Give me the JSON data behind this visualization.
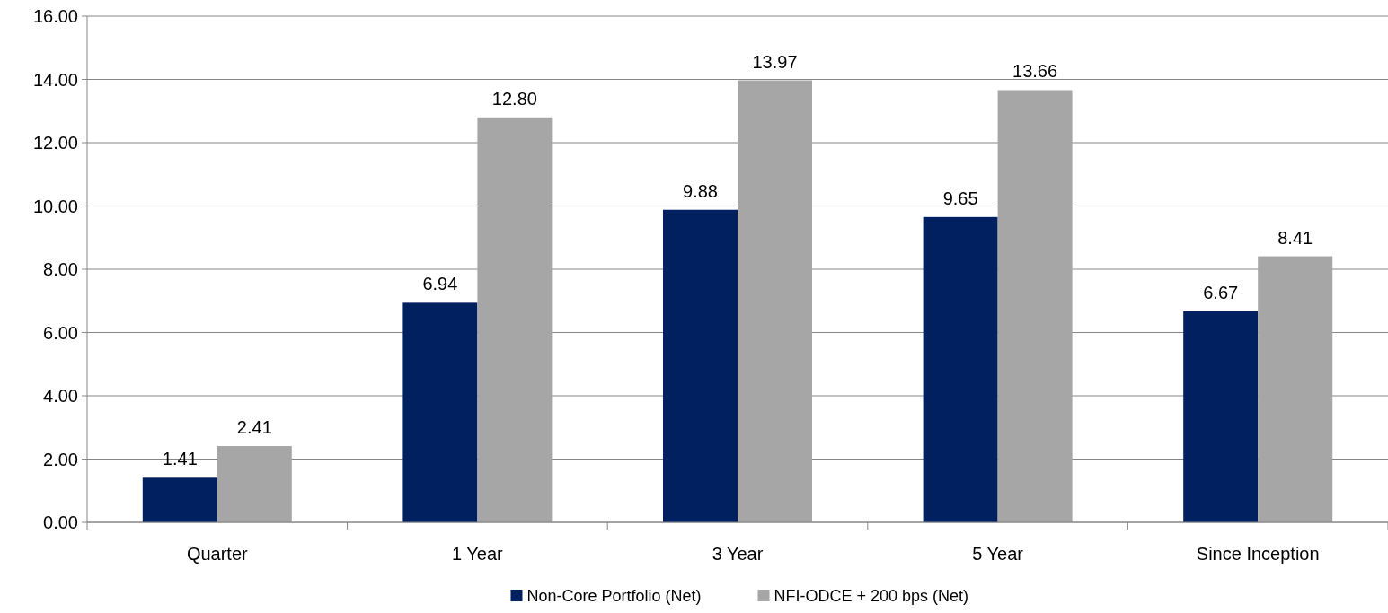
{
  "chart_data": {
    "type": "bar",
    "categories": [
      "Quarter",
      "1 Year",
      "3 Year",
      "5 Year",
      "Since Inception"
    ],
    "series": [
      {
        "name": "Non-Core Portfolio (Net)",
        "color": "#002060",
        "values": [
          1.41,
          6.94,
          9.88,
          9.65,
          6.67
        ]
      },
      {
        "name": "NFI-ODCE + 200 bps (Net)",
        "color": "#a6a6a6",
        "values": [
          2.41,
          12.8,
          13.97,
          13.66,
          8.41
        ]
      }
    ],
    "ylim": [
      0,
      16
    ],
    "yticks": [
      {
        "value": 0,
        "label": "0.00"
      },
      {
        "value": 2,
        "label": "2.00"
      },
      {
        "value": 4,
        "label": "4.00"
      },
      {
        "value": 6,
        "label": "6.00"
      },
      {
        "value": 8,
        "label": "8.00"
      },
      {
        "value": 10,
        "label": "10.00"
      },
      {
        "value": 12,
        "label": "12.00"
      },
      {
        "value": 14,
        "label": "14.00"
      },
      {
        "value": 16,
        "label": "16.00"
      }
    ],
    "value_labels": [
      [
        "1.41",
        "6.94",
        "9.88",
        "9.65",
        "6.67"
      ],
      [
        "2.41",
        "12.80",
        "13.97",
        "13.66",
        "8.41"
      ]
    ],
    "grid": "y",
    "legend": "bottom"
  }
}
